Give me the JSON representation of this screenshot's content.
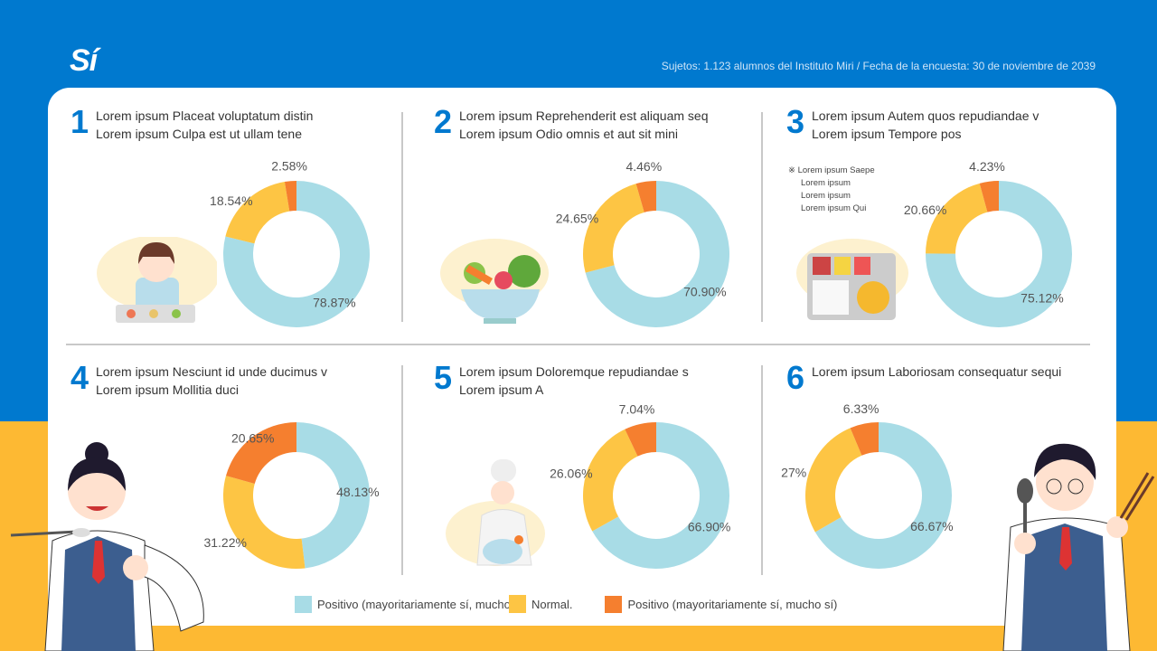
{
  "header": {
    "logo": "Sí",
    "subject": "Sujetos: 1.123 alumnos del Instituto Miri / Fecha de la encuesta: 30 de noviembre de 2039"
  },
  "colors": {
    "positive": "#A8DCE6",
    "normal": "#FDC544",
    "negative": "#F57F2F",
    "blue": "#0079CF",
    "yellow": "#FDB933"
  },
  "panels": [
    {
      "num": "1",
      "title": [
        "Lorem ipsum Placeat voluptatum distin",
        "Lorem ipsum Culpa est ut ullam tene"
      ],
      "illustration": "student-with-tray"
    },
    {
      "num": "2",
      "title": [
        "Lorem ipsum Reprehenderit est aliquam seq",
        "Lorem ipsum Odio omnis et aut sit mini"
      ],
      "illustration": "salad-bowl"
    },
    {
      "num": "3",
      "title": [
        "Lorem ipsum Autem quos repudiandae v",
        "Lorem ipsum Tempore pos"
      ],
      "note": [
        "※ Lorem ipsum Saepe",
        "Lorem ipsum",
        "Lorem ipsum",
        "Lorem ipsum Qui"
      ],
      "illustration": "lunch-tray"
    },
    {
      "num": "4",
      "title": [
        "Lorem ipsum Nesciunt id unde ducimus v",
        "Lorem ipsum Mollitia duci"
      ],
      "illustration": "girl-student"
    },
    {
      "num": "5",
      "title": [
        "Lorem ipsum Doloremque repudiandae s",
        "Lorem ipsum A"
      ],
      "illustration": "chef"
    },
    {
      "num": "6",
      "title": [
        "Lorem ipsum Laboriosam consequatur sequi"
      ],
      "illustration": "boy-student"
    }
  ],
  "chart_data": [
    {
      "type": "pie",
      "donut": true,
      "series": [
        {
          "values": [
            78.87,
            18.54,
            2.58
          ],
          "labels": [
            "78.87%",
            "18.54%",
            "2.58%"
          ]
        }
      ]
    },
    {
      "type": "pie",
      "donut": true,
      "series": [
        {
          "values": [
            70.9,
            24.65,
            4.46
          ],
          "labels": [
            "70.90%",
            "24.65%",
            "4.46%"
          ]
        }
      ]
    },
    {
      "type": "pie",
      "donut": true,
      "series": [
        {
          "values": [
            75.12,
            20.66,
            4.23
          ],
          "labels": [
            "75.12%",
            "20.66%",
            "4.23%"
          ]
        }
      ]
    },
    {
      "type": "pie",
      "donut": true,
      "series": [
        {
          "values": [
            48.13,
            31.22,
            20.65
          ],
          "labels": [
            "48.13%",
            "31.22%",
            "20.65%"
          ]
        }
      ]
    },
    {
      "type": "pie",
      "donut": true,
      "series": [
        {
          "values": [
            66.9,
            26.06,
            7.04
          ],
          "labels": [
            "66.90%",
            "26.06%",
            "7.04%"
          ]
        }
      ]
    },
    {
      "type": "pie",
      "donut": true,
      "series": [
        {
          "values": [
            66.67,
            27,
            6.33
          ],
          "labels": [
            "66.67%",
            "27%",
            "6.33%"
          ]
        }
      ]
    }
  ],
  "legend": [
    {
      "label": "Positivo (mayoritariamente sí, mucho s",
      "color": "#A8DCE6"
    },
    {
      "label": "Normal.",
      "color": "#FDC544"
    },
    {
      "label": "Positivo (mayoritariamente sí, mucho sí)",
      "color": "#F57F2F"
    }
  ]
}
